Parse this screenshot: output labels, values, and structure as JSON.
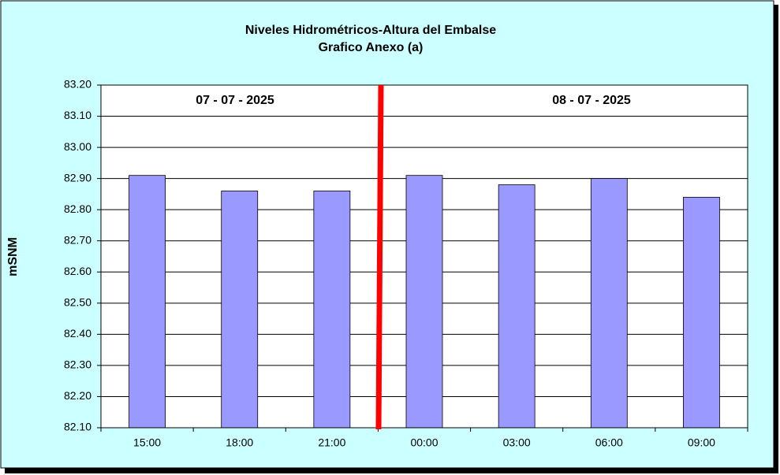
{
  "chart_data": {
    "type": "bar",
    "title": "Niveles Hidrométricos-Altura del Embalse",
    "subtitle": "Grafico Anexo (a)",
    "y_label": "mSNM",
    "annotations": [
      "07 - 07 - 2025",
      "08 - 07 - 2025"
    ],
    "categories": [
      "15:00",
      "18:00",
      "21:00",
      "00:00",
      "03:00",
      "06:00",
      "09:00"
    ],
    "values": [
      82.91,
      82.86,
      82.86,
      82.91,
      82.88,
      82.9,
      82.84
    ],
    "color": "#9999ff",
    "ylim": [
      82.1,
      83.2
    ],
    "yticks": [
      {
        "value": 82.1,
        "label": "82.10"
      },
      {
        "value": 82.2,
        "label": "82.20"
      },
      {
        "value": 82.3,
        "label": "82.30"
      },
      {
        "value": 82.4,
        "label": "82.40"
      },
      {
        "value": 82.5,
        "label": "82.50"
      },
      {
        "value": 82.6,
        "label": "82.60"
      },
      {
        "value": 82.7,
        "label": "82.70"
      },
      {
        "value": 82.8,
        "label": "82.80"
      },
      {
        "value": 82.9,
        "label": "82.90"
      },
      {
        "value": 83.0,
        "label": "83.00"
      },
      {
        "value": 83.1,
        "label": "83.10"
      },
      {
        "value": 83.2,
        "label": "83.20"
      }
    ],
    "grid": true
  }
}
